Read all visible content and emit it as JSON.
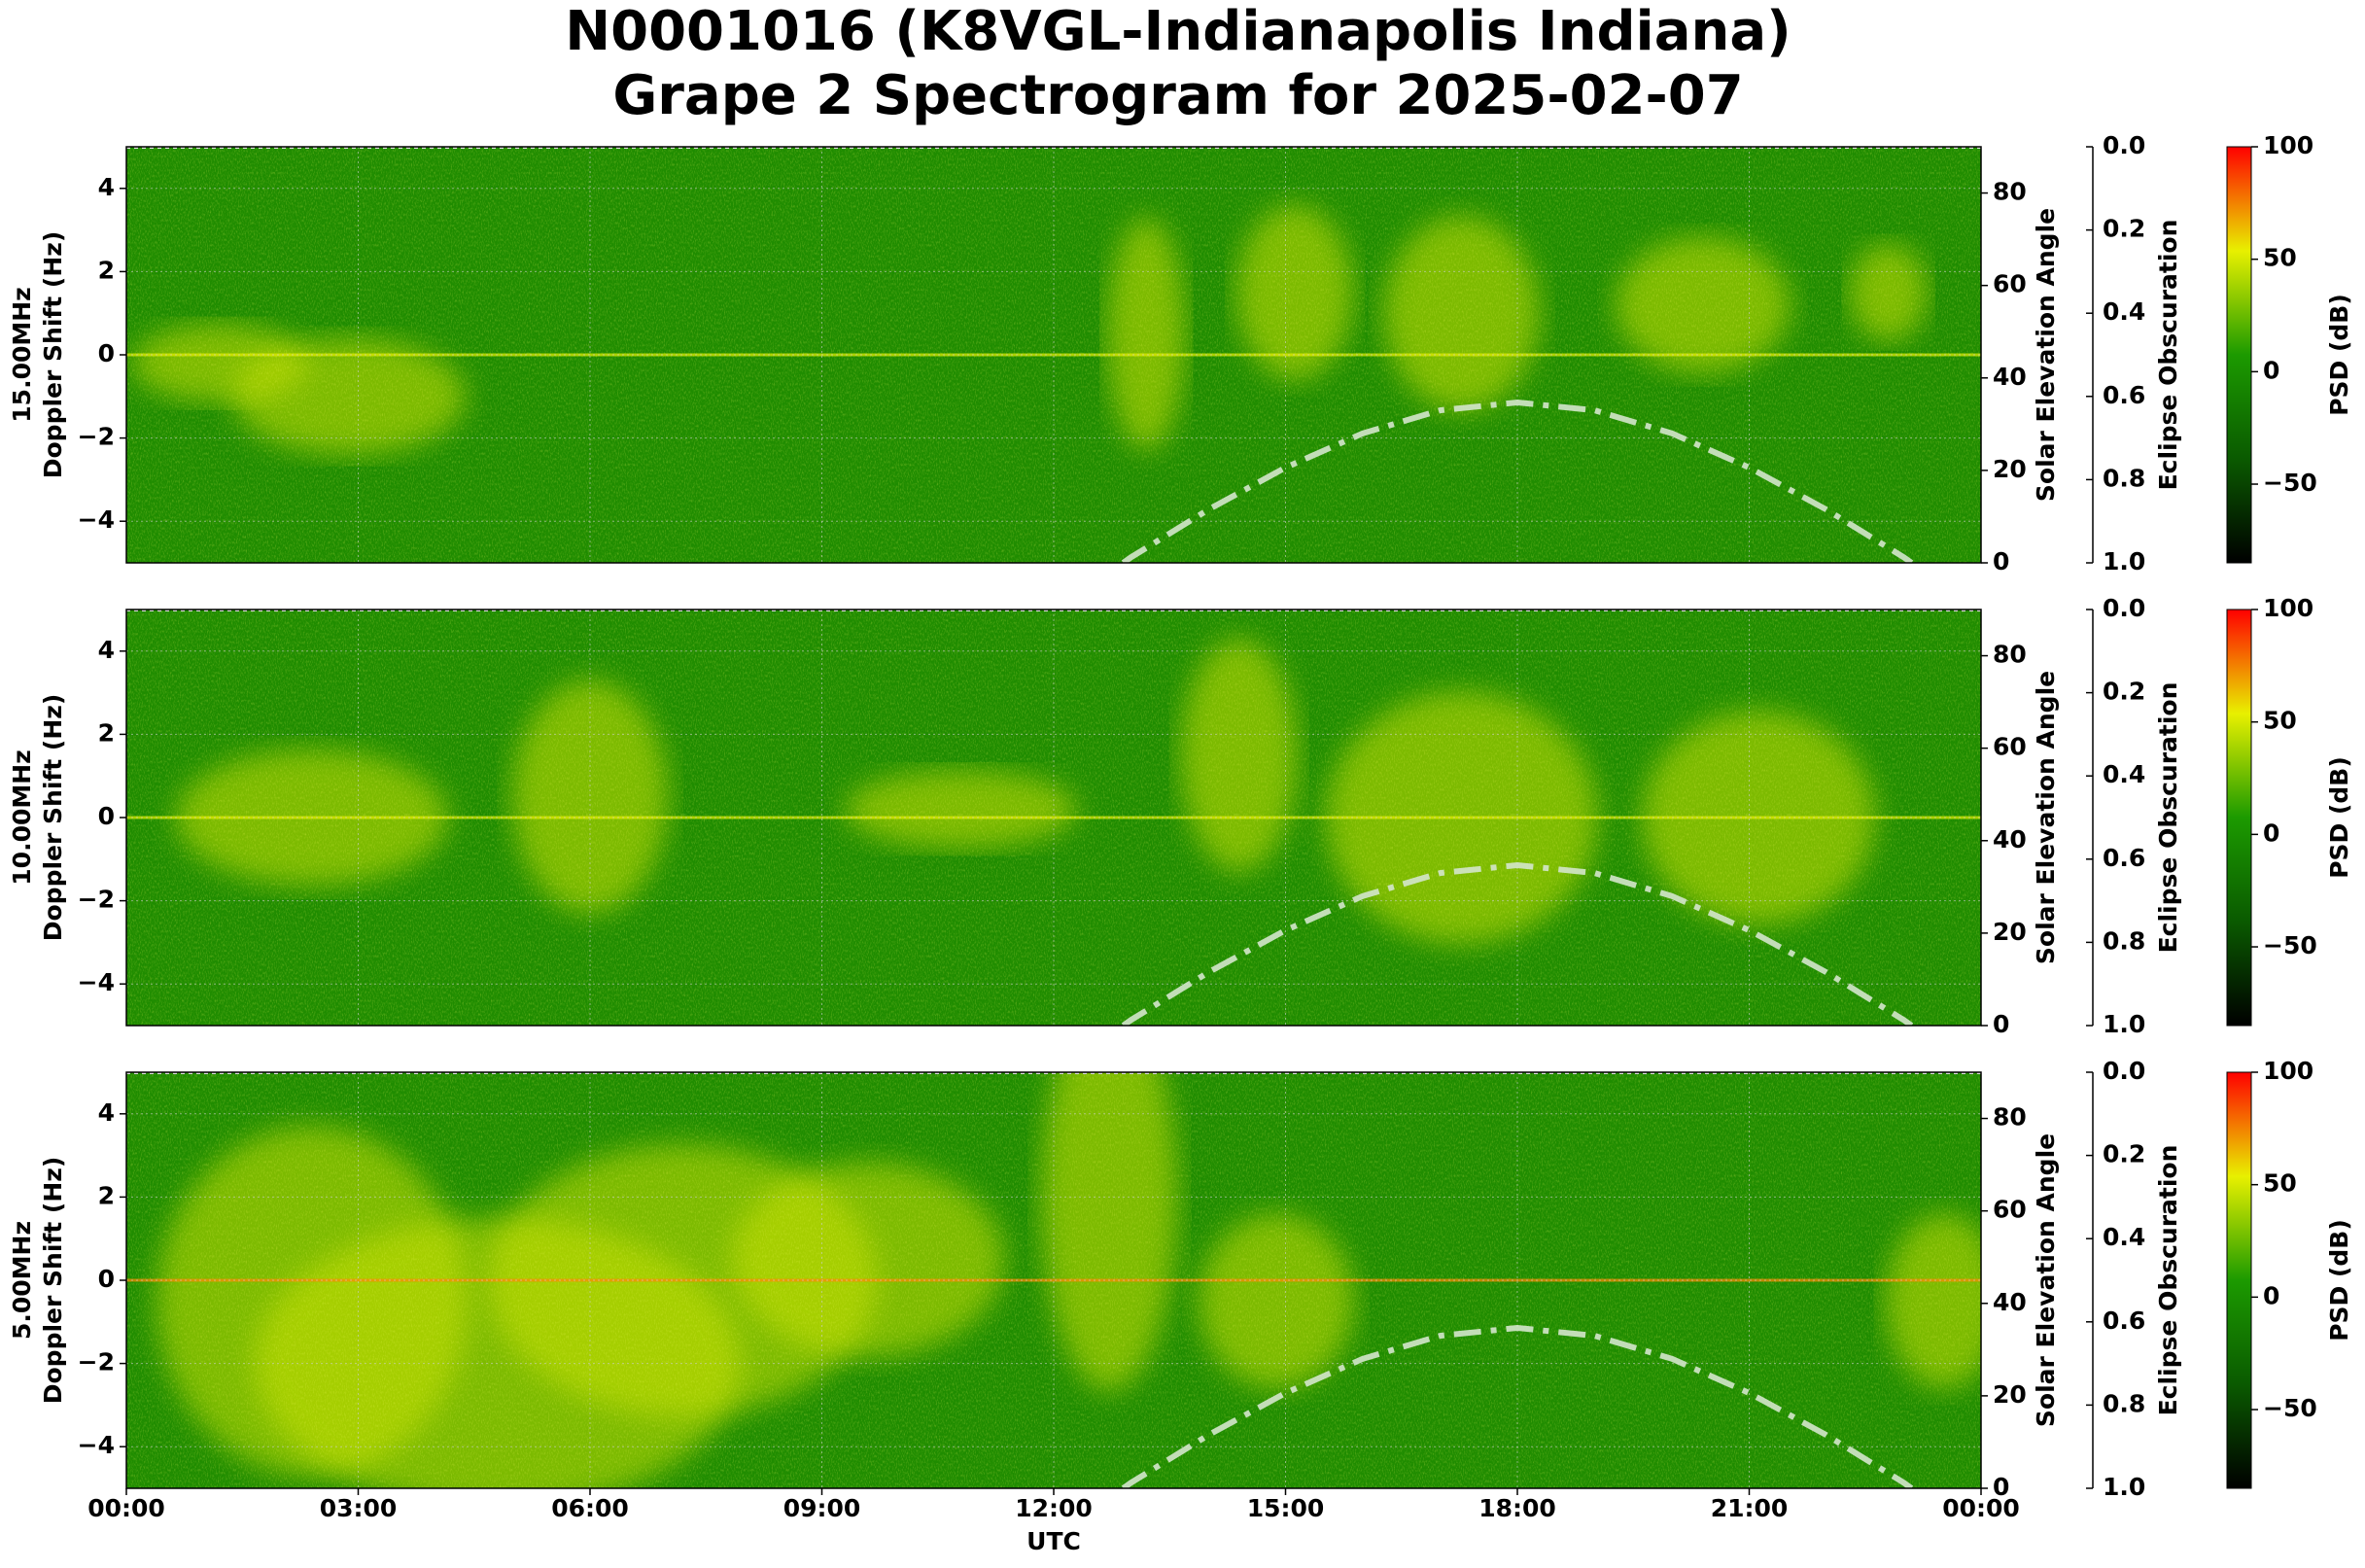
{
  "title": [
    "N0001016 (K8VGL-Indianapolis Indiana)",
    "Grape 2 Spectrogram for 2025-02-07"
  ],
  "chart_data": [
    {
      "type": "spectrogram",
      "frequency": "15.00MHz",
      "ylabel": "Doppler Shift (Hz)",
      "ylim": [
        -5,
        5
      ],
      "yticks": [
        {
          "value": -4,
          "label": "−4"
        },
        {
          "value": -2,
          "label": "−2"
        },
        0,
        2,
        4
      ],
      "grid": true,
      "y2label": "Solar Elevation Angle",
      "y2lim": [
        0,
        90
      ],
      "y2ticks": [
        0,
        20,
        40,
        60,
        80
      ],
      "y3label": "Eclipse Obscuration",
      "y3lim": [
        1,
        0
      ],
      "y3ticks": [
        {
          "value": 0,
          "label": "0.0"
        },
        {
          "value": 0.2,
          "label": "0.2"
        },
        {
          "value": 0.4,
          "label": "0.4"
        },
        {
          "value": 0.6,
          "label": "0.6"
        },
        {
          "value": 0.8,
          "label": "0.8"
        },
        {
          "value": 1,
          "label": "1.0"
        }
      ],
      "clabel": "PSD (dB)",
      "clim": [
        -85,
        100
      ],
      "cticks": [
        {
          "value": -50,
          "label": "−50"
        },
        0,
        50,
        100
      ],
      "colormap": [
        "#000000",
        "#0a5a00",
        "#1c9a00",
        "#e8f000",
        "#ff0000"
      ],
      "series": [
        {
          "name": "Solar Elevation Angle",
          "color": "#d4e6cc",
          "axis": "y2",
          "x": [
            12.9,
            13,
            14,
            15,
            16,
            17,
            18,
            19,
            20,
            21,
            22,
            23,
            23.1
          ],
          "values": [
            0,
            1.2,
            11.5,
            20.6,
            28,
            33,
            34.7,
            33,
            28,
            20.6,
            11.5,
            1.2,
            0
          ]
        }
      ]
    },
    {
      "type": "spectrogram",
      "frequency": "10.00MHz",
      "ylabel": "Doppler Shift (Hz)",
      "ylim": [
        -5,
        5
      ],
      "yticks": [
        {
          "value": -4,
          "label": "−4"
        },
        {
          "value": -2,
          "label": "−2"
        },
        0,
        2,
        4
      ],
      "grid": true,
      "y2label": "Solar Elevation Angle",
      "y2lim": [
        0,
        90
      ],
      "y2ticks": [
        0,
        20,
        40,
        60,
        80
      ],
      "y3label": "Eclipse Obscuration",
      "y3lim": [
        1,
        0
      ],
      "y3ticks": [
        {
          "value": 0,
          "label": "0.0"
        },
        {
          "value": 0.2,
          "label": "0.2"
        },
        {
          "value": 0.4,
          "label": "0.4"
        },
        {
          "value": 0.6,
          "label": "0.6"
        },
        {
          "value": 0.8,
          "label": "0.8"
        },
        {
          "value": 1,
          "label": "1.0"
        }
      ],
      "clabel": "PSD (dB)",
      "clim": [
        -85,
        100
      ],
      "cticks": [
        {
          "value": -50,
          "label": "−50"
        },
        0,
        50,
        100
      ],
      "colormap": [
        "#000000",
        "#0a5a00",
        "#1c9a00",
        "#e8f000",
        "#ff0000"
      ],
      "series": [
        {
          "name": "Solar Elevation Angle",
          "color": "#d4e6cc",
          "axis": "y2",
          "x": [
            12.9,
            13,
            14,
            15,
            16,
            17,
            18,
            19,
            20,
            21,
            22,
            23,
            23.1
          ],
          "values": [
            0,
            1.2,
            11.5,
            20.6,
            28,
            33,
            34.7,
            33,
            28,
            20.6,
            11.5,
            1.2,
            0
          ]
        }
      ]
    },
    {
      "type": "spectrogram",
      "frequency": "5.00MHz",
      "ylabel": "Doppler Shift (Hz)",
      "ylim": [
        -5,
        5
      ],
      "yticks": [
        {
          "value": -4,
          "label": "−4"
        },
        {
          "value": -2,
          "label": "−2"
        },
        0,
        2,
        4
      ],
      "grid": true,
      "y2label": "Solar Elevation Angle",
      "y2lim": [
        0,
        90
      ],
      "y2ticks": [
        0,
        20,
        40,
        60,
        80
      ],
      "y3label": "Eclipse Obscuration",
      "y3lim": [
        1,
        0
      ],
      "y3ticks": [
        {
          "value": 0,
          "label": "0.0"
        },
        {
          "value": 0.2,
          "label": "0.2"
        },
        {
          "value": 0.4,
          "label": "0.4"
        },
        {
          "value": 0.6,
          "label": "0.6"
        },
        {
          "value": 0.8,
          "label": "0.8"
        },
        {
          "value": 1,
          "label": "1.0"
        }
      ],
      "clabel": "PSD (dB)",
      "clim": [
        -85,
        100
      ],
      "cticks": [
        {
          "value": -50,
          "label": "−50"
        },
        0,
        50,
        100
      ],
      "colormap": [
        "#000000",
        "#0a5a00",
        "#1c9a00",
        "#e8f000",
        "#ff0000"
      ],
      "xlabel": "UTC",
      "xlim": [
        0,
        24
      ],
      "xticks": [
        {
          "value": 0,
          "label": "00:00"
        },
        {
          "value": 3,
          "label": "03:00"
        },
        {
          "value": 6,
          "label": "06:00"
        },
        {
          "value": 9,
          "label": "09:00"
        },
        {
          "value": 12,
          "label": "12:00"
        },
        {
          "value": 15,
          "label": "15:00"
        },
        {
          "value": 18,
          "label": "18:00"
        },
        {
          "value": 21,
          "label": "21:00"
        },
        {
          "value": 24,
          "label": "00:00"
        }
      ],
      "series": [
        {
          "name": "Solar Elevation Angle",
          "color": "#d4e6cc",
          "axis": "y2",
          "x": [
            12.9,
            13,
            14,
            15,
            16,
            17,
            18,
            19,
            20,
            21,
            22,
            23,
            23.1
          ],
          "values": [
            0,
            1.2,
            11.5,
            20.6,
            28,
            33,
            34.7,
            33,
            28,
            20.6,
            11.5,
            1.2,
            0
          ]
        }
      ]
    }
  ]
}
